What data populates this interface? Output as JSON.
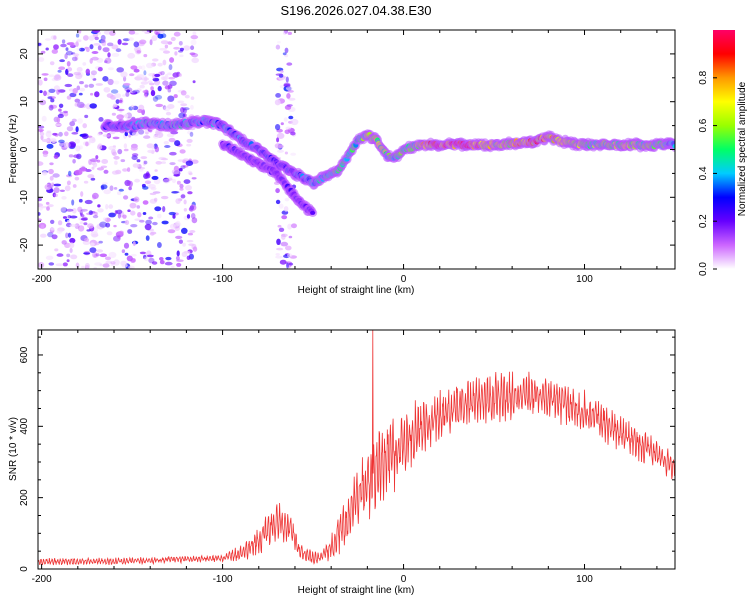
{
  "title": "S196.2026.027.04.38.E30",
  "chart_data": [
    {
      "type": "heatmap",
      "name": "spectrogram",
      "xlabel": "Height of straight line (km)",
      "ylabel": "Frequency (Hz)",
      "xlim": [
        -202,
        150
      ],
      "ylim": [
        -25,
        25
      ],
      "xticks": [
        -200,
        -100,
        0,
        100
      ],
      "yticks": [
        -20,
        -10,
        0,
        10,
        20
      ],
      "colorbar": {
        "label": "Normalized spectral amplitude",
        "range": [
          0,
          1
        ],
        "ticks": [
          0.0,
          0.2,
          0.4,
          0.6,
          0.8
        ],
        "colors": [
          "#ffffff",
          "#cc66ff",
          "#6600ff",
          "#0000ff",
          "#00ccff",
          "#00ff66",
          "#99ff00",
          "#ffff00",
          "#ff9900",
          "#ff0000",
          "#ff0066"
        ]
      },
      "ridge": {
        "name": "dominant frequency track",
        "points": [
          [
            -165,
            5
          ],
          [
            -150,
            5
          ],
          [
            -140,
            5.5
          ],
          [
            -130,
            5
          ],
          [
            -120,
            5.5
          ],
          [
            -110,
            6
          ],
          [
            -100,
            5
          ],
          [
            -90,
            2
          ],
          [
            -80,
            0
          ],
          [
            -70,
            -3
          ],
          [
            -60,
            -5
          ],
          [
            -50,
            -7
          ],
          [
            -40,
            -5
          ],
          [
            -35,
            -4
          ],
          [
            -30,
            -1
          ],
          [
            -25,
            2
          ],
          [
            -20,
            3
          ],
          [
            -15,
            2
          ],
          [
            -10,
            -1
          ],
          [
            -5,
            -2
          ],
          [
            0,
            0
          ],
          [
            10,
            1
          ],
          [
            30,
            1
          ],
          [
            50,
            1
          ],
          [
            70,
            1.5
          ],
          [
            80,
            2.5
          ],
          [
            90,
            1.5
          ],
          [
            100,
            1
          ],
          [
            120,
            1
          ],
          [
            140,
            1
          ],
          [
            150,
            1
          ]
        ],
        "branch": [
          [
            -100,
            1
          ],
          [
            -90,
            -1
          ],
          [
            -80,
            -3
          ],
          [
            -70,
            -5
          ],
          [
            -62,
            -9
          ],
          [
            -55,
            -12
          ],
          [
            -50,
            -13
          ]
        ],
        "amplitude": [
          [
            -165,
            0.25
          ],
          [
            -140,
            0.4
          ],
          [
            -120,
            0.4
          ],
          [
            -100,
            0.35
          ],
          [
            -80,
            0.3
          ],
          [
            -60,
            0.3
          ],
          [
            -45,
            0.4
          ],
          [
            -35,
            0.5
          ],
          [
            -25,
            0.45
          ],
          [
            -15,
            0.6
          ],
          [
            -5,
            0.45
          ],
          [
            5,
            0.55
          ],
          [
            20,
            0.85
          ],
          [
            35,
            1.0
          ],
          [
            50,
            0.6
          ],
          [
            70,
            0.8
          ],
          [
            85,
            0.7
          ],
          [
            100,
            0.55
          ],
          [
            120,
            0.6
          ],
          [
            140,
            0.55
          ],
          [
            150,
            0.35
          ]
        ]
      },
      "noise_regions": [
        [
          -202,
          -115
        ],
        [
          -70,
          -60
        ]
      ]
    },
    {
      "type": "line",
      "name": "snr",
      "xlabel": "Height of straight line (km)",
      "ylabel": "SNR (10 * v/v)",
      "xlim": [
        -202,
        150
      ],
      "ylim": [
        0,
        670
      ],
      "xticks": [
        -200,
        -100,
        0,
        100
      ],
      "yticks": [
        0,
        200,
        400,
        600
      ],
      "color": "#ee3333",
      "envelope_mean": [
        [
          -202,
          20
        ],
        [
          -150,
          22
        ],
        [
          -120,
          28
        ],
        [
          -100,
          30
        ],
        [
          -90,
          45
        ],
        [
          -80,
          80
        ],
        [
          -72,
          120
        ],
        [
          -68,
          130
        ],
        [
          -62,
          110
        ],
        [
          -58,
          50
        ],
        [
          -50,
          30
        ],
        [
          -45,
          35
        ],
        [
          -40,
          60
        ],
        [
          -35,
          100
        ],
        [
          -30,
          150
        ],
        [
          -25,
          200
        ],
        [
          -20,
          240
        ],
        [
          -15,
          270
        ],
        [
          -10,
          300
        ],
        [
          -5,
          330
        ],
        [
          0,
          350
        ],
        [
          10,
          400
        ],
        [
          20,
          430
        ],
        [
          30,
          460
        ],
        [
          40,
          475
        ],
        [
          50,
          480
        ],
        [
          60,
          485
        ],
        [
          70,
          485
        ],
        [
          80,
          480
        ],
        [
          90,
          460
        ],
        [
          100,
          440
        ],
        [
          110,
          410
        ],
        [
          120,
          380
        ],
        [
          130,
          350
        ],
        [
          140,
          320
        ],
        [
          150,
          285
        ]
      ],
      "envelope_amplitude": [
        [
          -202,
          10
        ],
        [
          -100,
          10
        ],
        [
          -80,
          40
        ],
        [
          -68,
          60
        ],
        [
          -58,
          25
        ],
        [
          -45,
          15
        ],
        [
          -35,
          60
        ],
        [
          -20,
          110
        ],
        [
          -5,
          110
        ],
        [
          10,
          80
        ],
        [
          30,
          70
        ],
        [
          60,
          70
        ],
        [
          100,
          60
        ],
        [
          130,
          50
        ],
        [
          150,
          40
        ]
      ],
      "spike": {
        "x": -17,
        "y": 670
      }
    }
  ]
}
